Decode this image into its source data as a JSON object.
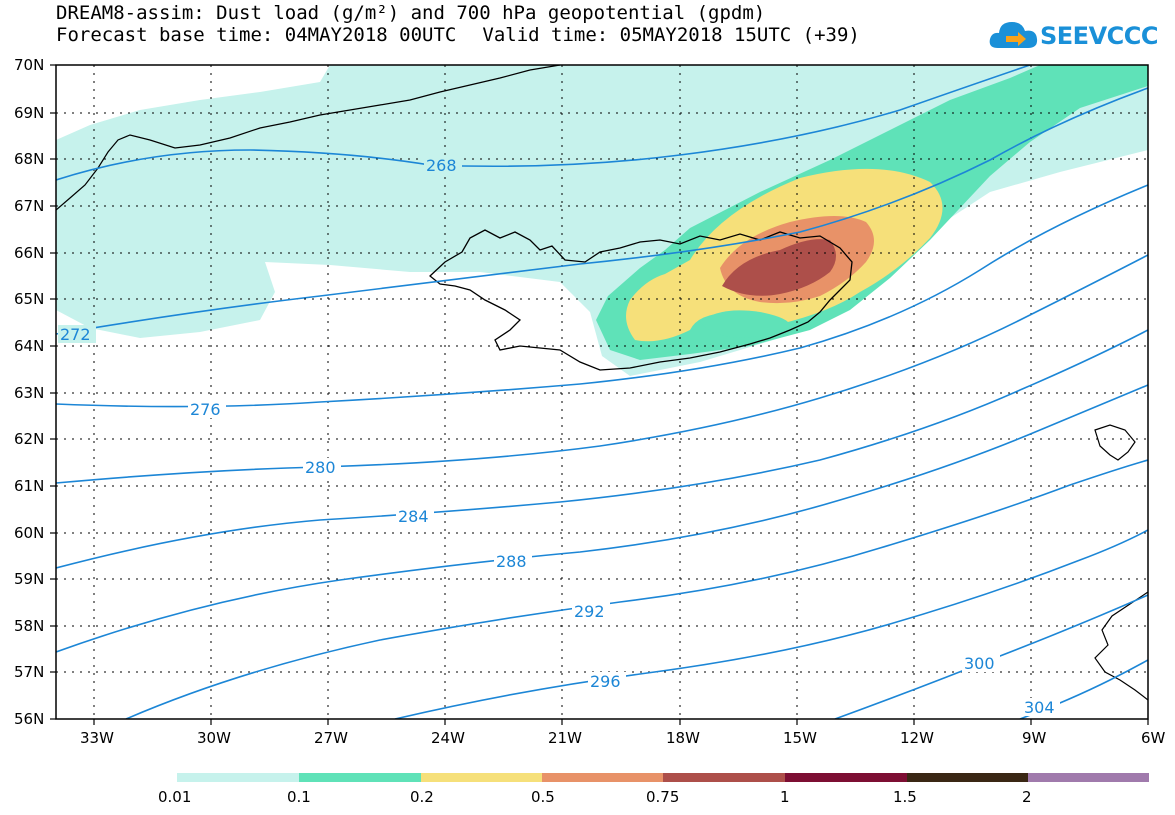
{
  "title": {
    "line1": "DREAM8-assim: Dust load (g/m²) and 700 hPa geopotential (gpdm)",
    "base": "Forecast base time: 04MAY2018 00UTC",
    "valid": "Valid time: 05MAY2018 15UTC (+39)"
  },
  "logo": {
    "text": "SEEVCCC"
  },
  "axes": {
    "lat_labels": [
      "70N",
      "69N",
      "68N",
      "67N",
      "66N",
      "65N",
      "64N",
      "63N",
      "62N",
      "61N",
      "60N",
      "59N",
      "58N",
      "57N",
      "56N"
    ],
    "lon_labels": [
      "33W",
      "30W",
      "27W",
      "24W",
      "21W",
      "18W",
      "15W",
      "12W",
      "9W",
      "6W"
    ]
  },
  "contours": [
    "268",
    "272",
    "276",
    "280",
    "284",
    "288",
    "292",
    "296",
    "300",
    "304"
  ],
  "legend": {
    "colors": [
      "#c6f2ec",
      "#5fe2b8",
      "#f6e07a",
      "#e89268",
      "#ad4f4a",
      "#7d0e33",
      "#3a2714",
      "#a07aac"
    ],
    "ticks": [
      "0.01",
      "0.1",
      "0.2",
      "0.5",
      "0.75",
      "1",
      "1.5",
      "2"
    ]
  },
  "colors": {
    "contour": "#1c86d6"
  }
}
